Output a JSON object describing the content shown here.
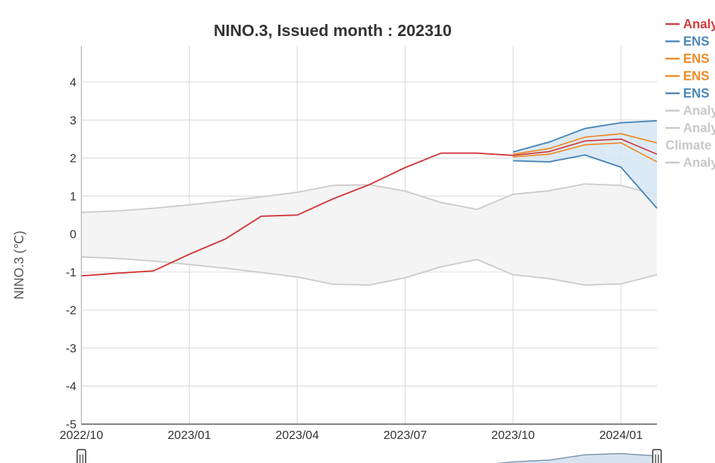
{
  "chart_data": {
    "type": "line",
    "title": "NINO.3, Issued month : 202310",
    "ylabel": "NINO.3 (℃)",
    "xlabel": "",
    "ylim": [
      -5,
      5
    ],
    "y_ticks": [
      -5,
      -4,
      -3,
      -2,
      -1,
      0,
      1,
      2,
      3,
      4
    ],
    "x_ticks": [
      "2022/10",
      "2023/01",
      "2023/04",
      "2023/07",
      "2023/10",
      "2024/01"
    ],
    "x_tick_index": [
      0,
      3,
      6,
      9,
      12,
      15
    ],
    "x_range": [
      0,
      16
    ],
    "grid": true,
    "legend_position": "top-right",
    "climate_band": {
      "x": [
        0,
        1,
        2,
        3,
        4,
        5,
        6,
        7,
        8,
        9,
        10,
        11,
        12,
        13,
        14,
        15,
        16
      ],
      "upper": [
        0.57,
        0.61,
        0.68,
        0.77,
        0.87,
        0.98,
        1.1,
        1.28,
        1.3,
        1.13,
        0.83,
        0.65,
        1.05,
        1.14,
        1.32,
        1.28,
        1.04
      ],
      "lower": [
        -0.6,
        -0.64,
        -0.71,
        -0.8,
        -0.9,
        -1.01,
        -1.13,
        -1.32,
        -1.34,
        -1.15,
        -0.86,
        -0.67,
        -1.07,
        -1.17,
        -1.34,
        -1.31,
        -1.07
      ]
    },
    "ens_spread": {
      "x": [
        12,
        13,
        14,
        15,
        16
      ],
      "upper": [
        2.16,
        2.42,
        2.78,
        2.93,
        2.98
      ],
      "lower": [
        1.93,
        1.9,
        2.08,
        1.76,
        0.68
      ]
    },
    "series": [
      {
        "name": "Analysis",
        "color": "#d13b3b",
        "x": [
          0,
          1,
          2,
          3,
          4,
          5,
          6,
          7,
          8,
          9,
          10,
          11,
          12
        ],
        "values": [
          -1.1,
          -1.03,
          -0.97,
          -0.53,
          -0.13,
          0.47,
          0.5,
          0.93,
          1.3,
          1.75,
          2.13,
          2.13,
          2.07
        ]
      },
      {
        "name": "ENS mean",
        "color": "#d13b3b",
        "x": [
          12,
          13,
          14,
          15,
          16
        ],
        "values": [
          2.07,
          2.17,
          2.45,
          2.5,
          2.1
        ]
      },
      {
        "name": "ENS upper",
        "color": "#f08a24",
        "x": [
          12,
          13,
          14,
          15,
          16
        ],
        "values": [
          2.1,
          2.25,
          2.55,
          2.64,
          2.4
        ]
      },
      {
        "name": "ENS lower",
        "color": "#f08a24",
        "x": [
          12,
          13,
          14,
          15,
          16
        ],
        "values": [
          2.03,
          2.1,
          2.35,
          2.4,
          1.9
        ]
      }
    ],
    "legend": [
      {
        "label": "Analy",
        "color": "#d13b3b"
      },
      {
        "label": "ENS",
        "color": "#4a86b8"
      },
      {
        "label": "ENS",
        "color": "#f08a24"
      },
      {
        "label": "ENS",
        "color": "#f08a24"
      },
      {
        "label": "ENS",
        "color": "#4a86b8"
      },
      {
        "label": "Analy",
        "color": "#c8c8c8"
      },
      {
        "label": "Analy",
        "color": "#c8c8c8"
      },
      {
        "label": "Climate",
        "color": "#c8c8c8"
      },
      {
        "label": "Analy",
        "color": "#c8c8c8"
      }
    ],
    "navigator": {
      "x": [
        11,
        12,
        13,
        14,
        15,
        16
      ],
      "values": [
        1.6,
        1.9,
        2.05,
        2.5,
        2.6,
        2.4
      ]
    }
  }
}
